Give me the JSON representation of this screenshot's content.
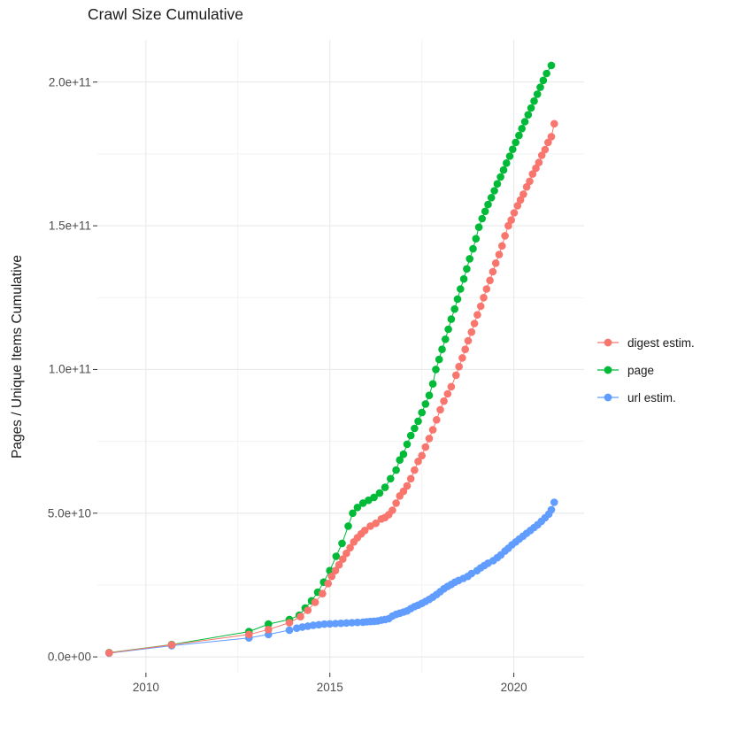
{
  "chart_data": {
    "type": "scatter",
    "title": "Crawl Size Cumulative",
    "xlabel": "",
    "ylabel": "Pages / Unique Items Cumulative",
    "value_unit_note": "series point values stored in billions (1e9) of items; y axis shown in scientific notation",
    "grid": true,
    "legend_position": "right",
    "x_range": [
      2008.68,
      2021.91
    ],
    "y_range_billions": [
      -5.5,
      214.7
    ],
    "x_ticks": [
      {
        "value": 2010,
        "label": "2010"
      },
      {
        "value": 2015,
        "label": "2015"
      },
      {
        "value": 2020,
        "label": "2020"
      }
    ],
    "x_minor": [
      2012.5,
      2017.5
    ],
    "y_ticks": [
      {
        "value": 0,
        "label": "0.0e+00"
      },
      {
        "value": 50,
        "label": "5.0e+10"
      },
      {
        "value": 100,
        "label": "1.0e+11"
      },
      {
        "value": 150,
        "label": "1.5e+11"
      },
      {
        "value": 200,
        "label": "2.0e+11"
      }
    ],
    "y_minor": [
      25,
      75,
      125,
      175
    ],
    "colors": {
      "grid_major": "#e9e9e9",
      "grid_minor": "#f3f3f3",
      "axis_tick": "#333333",
      "tick_label": "#4d4d4d",
      "text": "#1a1a1a"
    },
    "draw_order": [
      2,
      1,
      0
    ],
    "point_radius": 4.3,
    "series": [
      {
        "name": "digest estim.",
        "color": "#F8766D",
        "points": [
          [
            2009.0,
            1.4
          ],
          [
            2010.7,
            4.2
          ],
          [
            2012.8,
            7.8
          ],
          [
            2013.33,
            9.5
          ],
          [
            2013.9,
            11.9
          ],
          [
            2014.2,
            14
          ],
          [
            2014.4,
            16.2
          ],
          [
            2014.6,
            19
          ],
          [
            2014.8,
            22
          ],
          [
            2014.95,
            25.5
          ],
          [
            2015.05,
            28
          ],
          [
            2015.15,
            30
          ],
          [
            2015.25,
            32
          ],
          [
            2015.35,
            34
          ],
          [
            2015.45,
            36
          ],
          [
            2015.55,
            38
          ],
          [
            2015.65,
            40
          ],
          [
            2015.75,
            41.5
          ],
          [
            2015.85,
            42.8
          ],
          [
            2015.95,
            44
          ],
          [
            2016.1,
            45.5
          ],
          [
            2016.25,
            46.5
          ],
          [
            2016.4,
            48
          ],
          [
            2016.5,
            48.5
          ],
          [
            2016.6,
            49.5
          ],
          [
            2016.7,
            51
          ],
          [
            2016.8,
            53.5
          ],
          [
            2016.9,
            56
          ],
          [
            2017.0,
            57.6
          ],
          [
            2017.1,
            59.5
          ],
          [
            2017.2,
            62
          ],
          [
            2017.3,
            65
          ],
          [
            2017.4,
            68
          ],
          [
            2017.5,
            70
          ],
          [
            2017.6,
            73
          ],
          [
            2017.7,
            76
          ],
          [
            2017.8,
            79
          ],
          [
            2017.9,
            82.5
          ],
          [
            2018.0,
            86
          ],
          [
            2018.1,
            89
          ],
          [
            2018.2,
            91.5
          ],
          [
            2018.3,
            94
          ],
          [
            2018.43,
            98
          ],
          [
            2018.51,
            101
          ],
          [
            2018.6,
            104
          ],
          [
            2018.68,
            107
          ],
          [
            2018.76,
            110
          ],
          [
            2018.85,
            113
          ],
          [
            2018.93,
            116
          ],
          [
            2019.01,
            119
          ],
          [
            2019.1,
            122
          ],
          [
            2019.18,
            125
          ],
          [
            2019.26,
            128
          ],
          [
            2019.35,
            131
          ],
          [
            2019.43,
            134
          ],
          [
            2019.51,
            137
          ],
          [
            2019.6,
            140
          ],
          [
            2019.68,
            143
          ],
          [
            2019.76,
            146.5
          ],
          [
            2019.85,
            150
          ],
          [
            2019.93,
            152
          ],
          [
            2020.01,
            154.5
          ],
          [
            2020.1,
            157
          ],
          [
            2020.18,
            159
          ],
          [
            2020.26,
            161
          ],
          [
            2020.35,
            163.5
          ],
          [
            2020.43,
            165.5
          ],
          [
            2020.51,
            168
          ],
          [
            2020.6,
            170
          ],
          [
            2020.68,
            172
          ],
          [
            2020.76,
            174.5
          ],
          [
            2020.85,
            176.5
          ],
          [
            2020.93,
            179
          ],
          [
            2021.02,
            181
          ],
          [
            2021.1,
            185.5
          ]
        ]
      },
      {
        "name": "page",
        "color": "#00BA38",
        "points": [
          [
            2009.0,
            1.5
          ],
          [
            2010.7,
            4.3
          ],
          [
            2012.8,
            8.8
          ],
          [
            2013.33,
            11.4
          ],
          [
            2013.9,
            13.0
          ],
          [
            2014.17,
            14.5
          ],
          [
            2014.33,
            17
          ],
          [
            2014.5,
            19.5
          ],
          [
            2014.67,
            22.5
          ],
          [
            2014.83,
            26
          ],
          [
            2015.0,
            30
          ],
          [
            2015.17,
            35
          ],
          [
            2015.33,
            39.5
          ],
          [
            2015.5,
            45.5
          ],
          [
            2015.62,
            50
          ],
          [
            2015.75,
            52
          ],
          [
            2015.9,
            53.5
          ],
          [
            2016.05,
            54.5
          ],
          [
            2016.2,
            55.5
          ],
          [
            2016.35,
            57
          ],
          [
            2016.5,
            59
          ],
          [
            2016.65,
            62
          ],
          [
            2016.8,
            65
          ],
          [
            2016.9,
            68.5
          ],
          [
            2017.0,
            70.5
          ],
          [
            2017.1,
            74
          ],
          [
            2017.2,
            77
          ],
          [
            2017.3,
            79.5
          ],
          [
            2017.4,
            82
          ],
          [
            2017.5,
            85
          ],
          [
            2017.6,
            88
          ],
          [
            2017.7,
            91
          ],
          [
            2017.8,
            95
          ],
          [
            2017.88,
            100
          ],
          [
            2017.97,
            103.5
          ],
          [
            2018.05,
            107
          ],
          [
            2018.14,
            110.5
          ],
          [
            2018.22,
            114
          ],
          [
            2018.3,
            117.5
          ],
          [
            2018.39,
            121
          ],
          [
            2018.47,
            124.5
          ],
          [
            2018.55,
            128
          ],
          [
            2018.64,
            131.5
          ],
          [
            2018.72,
            135
          ],
          [
            2018.8,
            138.5
          ],
          [
            2018.89,
            142
          ],
          [
            2018.97,
            145.5
          ],
          [
            2019.05,
            149.5
          ],
          [
            2019.14,
            152.5
          ],
          [
            2019.22,
            155
          ],
          [
            2019.3,
            157.4
          ],
          [
            2019.39,
            159.8
          ],
          [
            2019.47,
            162.2
          ],
          [
            2019.55,
            164.6
          ],
          [
            2019.64,
            167
          ],
          [
            2019.72,
            169.4
          ],
          [
            2019.8,
            171.8
          ],
          [
            2019.89,
            174.2
          ],
          [
            2019.97,
            176.6
          ],
          [
            2020.05,
            179
          ],
          [
            2020.14,
            181.4
          ],
          [
            2020.22,
            183.8
          ],
          [
            2020.3,
            186.2
          ],
          [
            2020.39,
            188.6
          ],
          [
            2020.47,
            191
          ],
          [
            2020.55,
            193.4
          ],
          [
            2020.64,
            195.8
          ],
          [
            2020.72,
            198.2
          ],
          [
            2020.8,
            200.6
          ],
          [
            2020.89,
            203
          ],
          [
            2021.02,
            205.8
          ]
        ]
      },
      {
        "name": "url estim.",
        "color": "#619CFF",
        "points": [
          [
            2009.0,
            1.3
          ],
          [
            2010.7,
            3.9
          ],
          [
            2012.8,
            6.6
          ],
          [
            2013.33,
            7.8
          ],
          [
            2013.9,
            9.3
          ],
          [
            2014.1,
            10
          ],
          [
            2014.25,
            10.4
          ],
          [
            2014.4,
            10.7
          ],
          [
            2014.55,
            11
          ],
          [
            2014.7,
            11.2
          ],
          [
            2014.85,
            11.4
          ],
          [
            2015.0,
            11.5
          ],
          [
            2015.15,
            11.6
          ],
          [
            2015.3,
            11.7
          ],
          [
            2015.45,
            11.8
          ],
          [
            2015.6,
            11.9
          ],
          [
            2015.75,
            12
          ],
          [
            2015.9,
            12.1
          ],
          [
            2016.0,
            12.2
          ],
          [
            2016.1,
            12.3
          ],
          [
            2016.2,
            12.4
          ],
          [
            2016.3,
            12.5
          ],
          [
            2016.4,
            12.8
          ],
          [
            2016.5,
            13
          ],
          [
            2016.6,
            13.3
          ],
          [
            2016.7,
            14.2
          ],
          [
            2016.8,
            14.8
          ],
          [
            2016.9,
            15.2
          ],
          [
            2017.0,
            15.6
          ],
          [
            2017.1,
            16
          ],
          [
            2017.2,
            16.8
          ],
          [
            2017.3,
            17.5
          ],
          [
            2017.4,
            18
          ],
          [
            2017.5,
            18.6
          ],
          [
            2017.6,
            19.3
          ],
          [
            2017.7,
            20
          ],
          [
            2017.8,
            20.8
          ],
          [
            2017.9,
            21.7
          ],
          [
            2018.0,
            22.7
          ],
          [
            2018.1,
            23.7
          ],
          [
            2018.2,
            24.5
          ],
          [
            2018.3,
            25.2
          ],
          [
            2018.4,
            26
          ],
          [
            2018.5,
            26.6
          ],
          [
            2018.63,
            27.3
          ],
          [
            2018.75,
            28
          ],
          [
            2018.85,
            29
          ],
          [
            2019.0,
            30
          ],
          [
            2019.1,
            31
          ],
          [
            2019.2,
            31.8
          ],
          [
            2019.3,
            32.6
          ],
          [
            2019.44,
            33.5
          ],
          [
            2019.55,
            34.5
          ],
          [
            2019.65,
            35.5
          ],
          [
            2019.76,
            36.8
          ],
          [
            2019.85,
            37.8
          ],
          [
            2019.95,
            39
          ],
          [
            2020.05,
            40
          ],
          [
            2020.15,
            41
          ],
          [
            2020.25,
            42
          ],
          [
            2020.35,
            43
          ],
          [
            2020.45,
            44
          ],
          [
            2020.55,
            45
          ],
          [
            2020.65,
            46
          ],
          [
            2020.75,
            47.2
          ],
          [
            2020.85,
            48.4
          ],
          [
            2020.95,
            49.7
          ],
          [
            2021.02,
            51.2
          ],
          [
            2021.1,
            53.8
          ]
        ]
      }
    ]
  }
}
